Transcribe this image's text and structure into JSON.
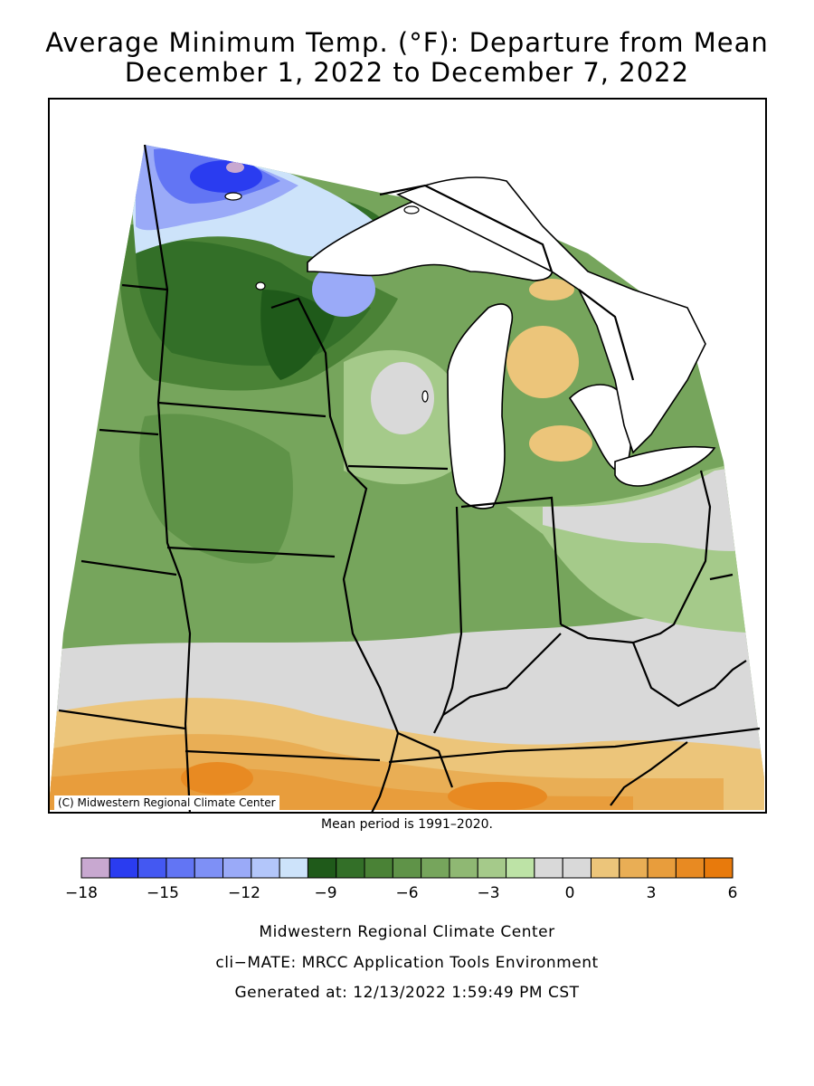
{
  "title_line1": "Average Minimum Temp. (°F): Departure from Mean",
  "title_line2": "December 1, 2022 to December 7, 2022",
  "copyright": "(C) Midwestern Regional Climate Center",
  "mean_period": "Mean period is 1991–2020.",
  "legend": {
    "colors": [
      "#c8a8d0",
      "#2a3cf0",
      "#4458f2",
      "#6275f4",
      "#7e90f6",
      "#9aaaf8",
      "#b3c6fa",
      "#cde3fa",
      "#1f5a1a",
      "#336f28",
      "#4a8236",
      "#5f9348",
      "#76a55c",
      "#8fb873",
      "#a5ca8a",
      "#bde3a6",
      "#d9d9d9",
      "#d9d9d9",
      "#ecc57a",
      "#e9ae55",
      "#e89d3c",
      "#e88a22",
      "#e87a0c"
    ],
    "tick_labels": [
      "−18",
      "−15",
      "−12",
      "−9",
      "−6",
      "−3",
      "0",
      "3",
      "6"
    ]
  },
  "footer": {
    "line1": "Midwestern Regional Climate Center",
    "line2": "cli−MATE: MRCC Application Tools Environment",
    "line3": "Generated at: 12/13/2022 1:59:49 PM CST"
  }
}
